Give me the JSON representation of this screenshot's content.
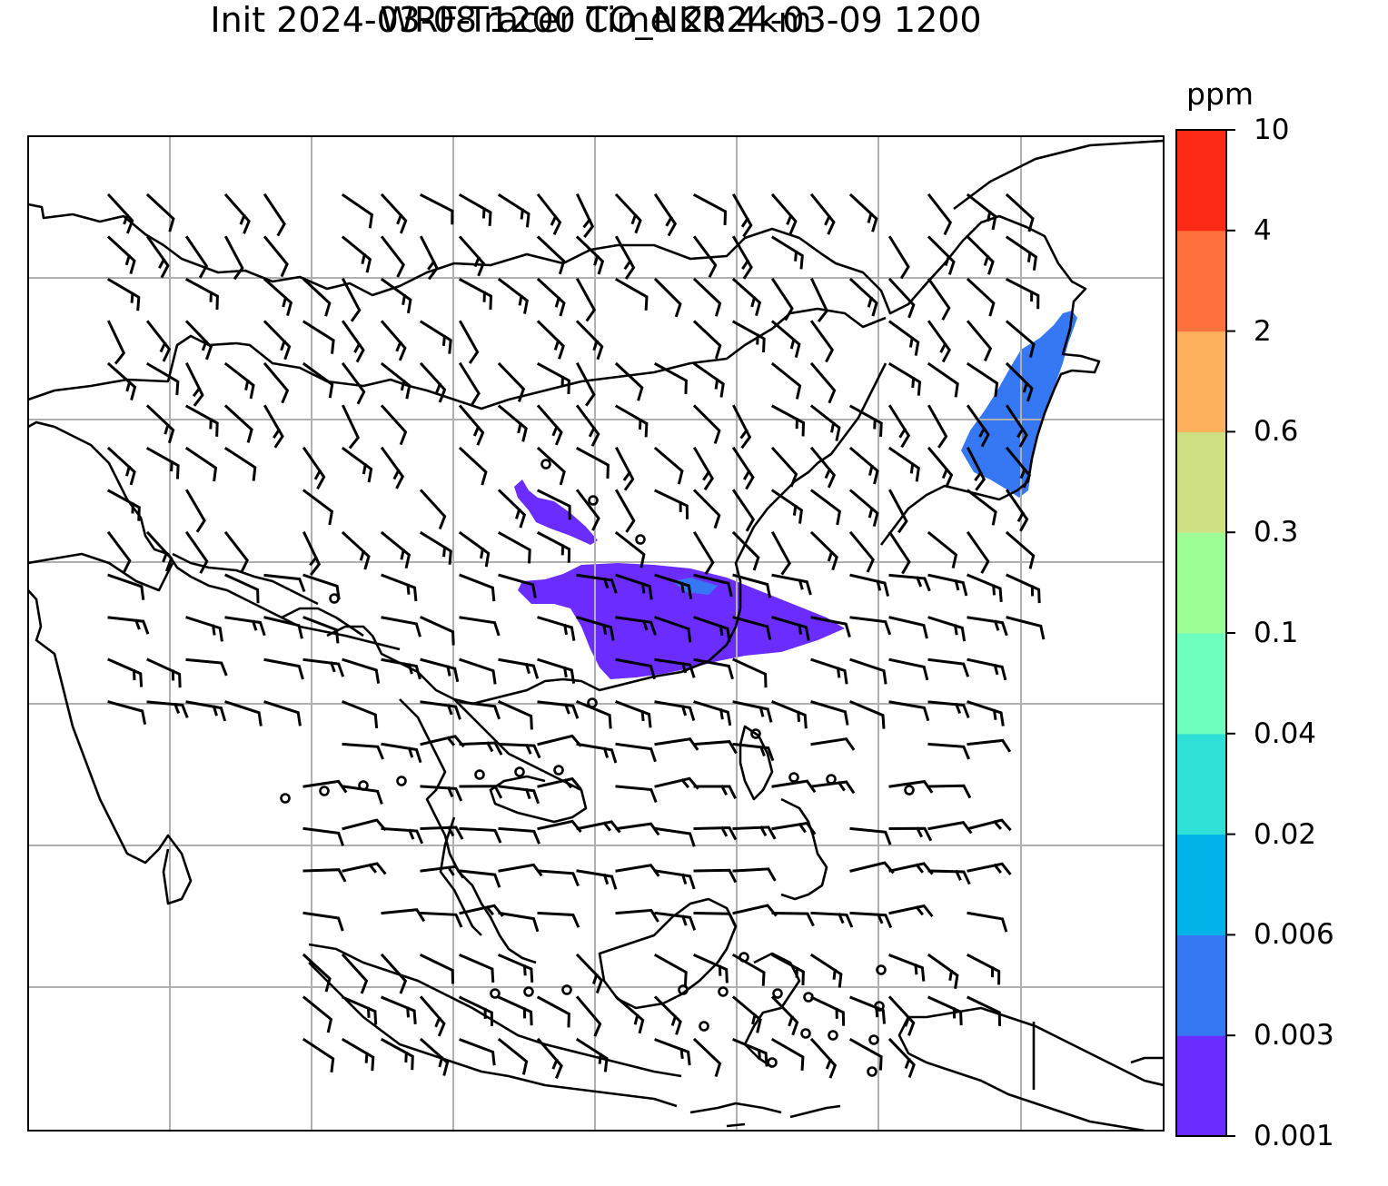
{
  "title_line1": "WRF-Tracer CO_NKR 4km",
  "title_line2": "Init 2024-03-08 1200 Time 2024-03-09 1200",
  "colorbar": {
    "unit": "ppm",
    "levels": [
      "0.001",
      "0.003",
      "0.006",
      "0.02",
      "0.04",
      "0.1",
      "0.3",
      "0.6",
      "2",
      "4",
      "10"
    ],
    "colors": [
      "#6a2cff",
      "#3677f4",
      "#00b4ea",
      "#2fe0d6",
      "#6effbf",
      "#9eff97",
      "#cfe084",
      "#ffb05c",
      "#ff713c",
      "#ff2a16"
    ]
  },
  "map": {
    "tracer_plumes": [
      {
        "level": "0.001",
        "color": "#6a2cff"
      },
      {
        "level": "0.003",
        "color": "#3677f4"
      }
    ],
    "gridlines": true,
    "wind_barbs": true
  }
}
